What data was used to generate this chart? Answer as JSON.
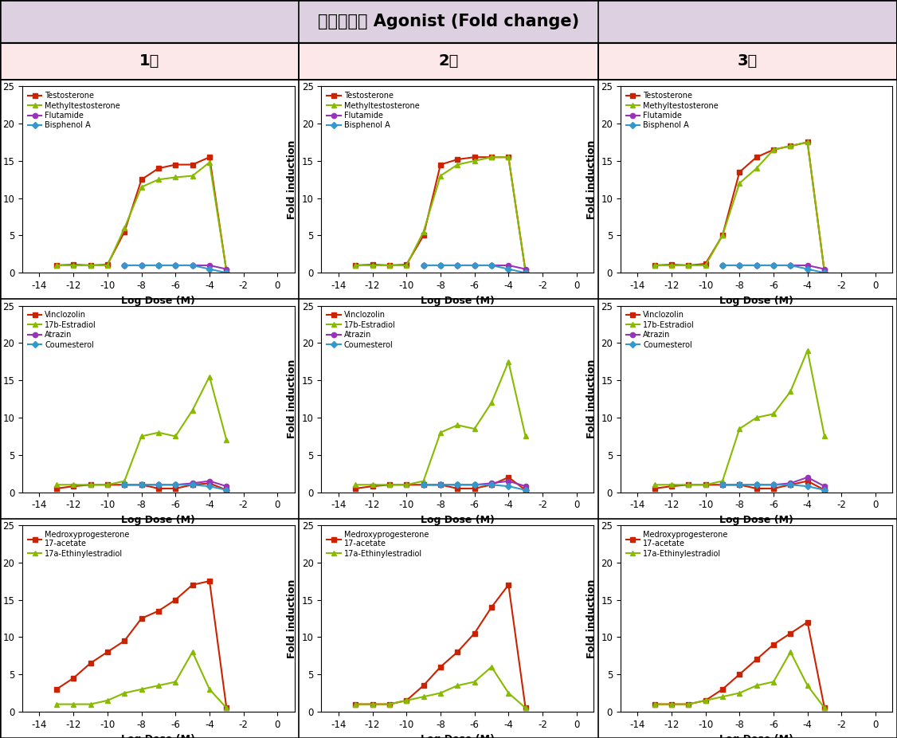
{
  "title": "고려대학교 Agonist (Fold change)",
  "col_headers": [
    "1차",
    "2차",
    "3차"
  ],
  "title_bg": "#ddd0e0",
  "col_header_bg": "#fce8e8",
  "x_ticks": [
    -14,
    -12,
    -10,
    -8,
    -6,
    -4,
    -2,
    0
  ],
  "xlim": [
    -15,
    1
  ],
  "ylim": [
    0,
    25
  ],
  "y_ticks": [
    0,
    5,
    10,
    15,
    20,
    25
  ],
  "xlabel": "Log Dose (M)",
  "ylabel": "Fold induction",
  "rows": [
    {
      "series": [
        {
          "label": "Testosterone",
          "color": "#cc2200",
          "marker": "s",
          "x": [
            -13,
            -12,
            -11,
            -10,
            -9,
            -8,
            -7,
            -6,
            -5,
            -4,
            -3
          ],
          "y1": [
            1.0,
            1.1,
            1.0,
            1.1,
            5.5,
            12.5,
            14.0,
            14.5,
            14.5,
            15.5,
            0.2
          ],
          "y2": [
            1.0,
            1.1,
            1.0,
            1.1,
            5.0,
            14.5,
            15.2,
            15.5,
            15.5,
            15.5,
            0.2
          ],
          "y3": [
            1.0,
            1.1,
            1.0,
            1.2,
            5.0,
            13.5,
            15.5,
            16.5,
            17.0,
            17.5,
            0.1
          ]
        },
        {
          "label": "Methyltestosterone",
          "color": "#88bb00",
          "marker": "^",
          "x": [
            -13,
            -12,
            -11,
            -10,
            -9,
            -8,
            -7,
            -6,
            -5,
            -4,
            -3
          ],
          "y1": [
            1.0,
            1.0,
            1.0,
            1.0,
            6.0,
            11.5,
            12.5,
            12.8,
            13.0,
            14.8,
            0.2
          ],
          "y2": [
            1.0,
            1.0,
            1.0,
            1.0,
            5.5,
            13.0,
            14.5,
            15.0,
            15.5,
            15.5,
            0.2
          ],
          "y3": [
            1.0,
            1.0,
            1.0,
            1.0,
            5.0,
            12.0,
            14.0,
            16.5,
            17.0,
            17.5,
            0.1
          ]
        },
        {
          "label": "Flutamide",
          "color": "#9933bb",
          "marker": "o",
          "x": [
            -9,
            -8,
            -7,
            -6,
            -5,
            -4,
            -3
          ],
          "y1": [
            1.0,
            1.0,
            1.0,
            1.0,
            1.0,
            1.0,
            0.5
          ],
          "y2": [
            1.0,
            1.0,
            1.0,
            1.0,
            1.0,
            1.0,
            0.5
          ],
          "y3": [
            1.0,
            1.0,
            1.0,
            1.0,
            1.0,
            1.0,
            0.5
          ]
        },
        {
          "label": "Bisphenol A",
          "color": "#3399cc",
          "marker": "D",
          "x": [
            -9,
            -8,
            -7,
            -6,
            -5,
            -4,
            -3
          ],
          "y1": [
            1.0,
            1.0,
            1.0,
            1.0,
            1.0,
            0.5,
            0.0
          ],
          "y2": [
            1.0,
            1.0,
            1.0,
            1.0,
            1.0,
            0.5,
            0.0
          ],
          "y3": [
            1.0,
            1.0,
            1.0,
            1.0,
            1.0,
            0.5,
            0.0
          ]
        }
      ]
    },
    {
      "series": [
        {
          "label": "Vinclozolin",
          "color": "#cc2200",
          "marker": "s",
          "x": [
            -13,
            -12,
            -11,
            -10,
            -9,
            -8,
            -7,
            -6,
            -5,
            -4,
            -3
          ],
          "y1": [
            0.5,
            0.8,
            1.0,
            1.0,
            1.0,
            1.0,
            0.5,
            0.5,
            1.0,
            1.2,
            0.3
          ],
          "y2": [
            0.5,
            0.8,
            1.0,
            1.0,
            1.0,
            1.0,
            0.5,
            0.5,
            1.0,
            2.0,
            0.3
          ],
          "y3": [
            0.5,
            0.8,
            1.0,
            1.0,
            1.0,
            1.0,
            0.5,
            0.5,
            1.0,
            1.5,
            0.3
          ]
        },
        {
          "label": "17b-Estradiol",
          "color": "#88bb00",
          "marker": "^",
          "x": [
            -13,
            -12,
            -11,
            -10,
            -9,
            -8,
            -7,
            -6,
            -5,
            -4,
            -3
          ],
          "y1": [
            1.0,
            1.0,
            1.0,
            1.0,
            1.5,
            7.5,
            8.0,
            7.5,
            11.0,
            15.5,
            7.0
          ],
          "y2": [
            1.0,
            1.0,
            1.0,
            1.0,
            1.5,
            8.0,
            9.0,
            8.5,
            12.0,
            17.5,
            7.5
          ],
          "y3": [
            1.0,
            1.0,
            1.0,
            1.0,
            1.5,
            8.5,
            10.0,
            10.5,
            13.5,
            19.0,
            7.5
          ]
        },
        {
          "label": "Atrazin",
          "color": "#9933bb",
          "marker": "o",
          "x": [
            -9,
            -8,
            -7,
            -6,
            -5,
            -4,
            -3
          ],
          "y1": [
            1.0,
            1.0,
            1.0,
            1.0,
            1.2,
            1.5,
            0.8
          ],
          "y2": [
            1.0,
            1.0,
            1.0,
            1.0,
            1.2,
            1.5,
            0.8
          ],
          "y3": [
            1.0,
            1.0,
            1.0,
            1.0,
            1.2,
            2.0,
            0.8
          ]
        },
        {
          "label": "Coumesterol",
          "color": "#3399cc",
          "marker": "D",
          "x": [
            -9,
            -8,
            -7,
            -6,
            -5,
            -4,
            -3
          ],
          "y1": [
            1.0,
            1.0,
            1.0,
            1.0,
            1.0,
            0.8,
            0.3
          ],
          "y2": [
            1.0,
            1.0,
            1.0,
            1.0,
            1.0,
            0.8,
            0.3
          ],
          "y3": [
            1.0,
            1.0,
            1.0,
            1.0,
            1.0,
            0.8,
            0.3
          ]
        }
      ]
    },
    {
      "series": [
        {
          "label": "Medroxyprogesterone\n17-acetate",
          "color": "#cc2200",
          "marker": "s",
          "x": [
            -13,
            -12,
            -11,
            -10,
            -9,
            -8,
            -7,
            -6,
            -5,
            -4,
            -3
          ],
          "y1": [
            3.0,
            4.5,
            6.5,
            8.0,
            9.5,
            12.5,
            13.5,
            15.0,
            17.0,
            17.5,
            0.5
          ],
          "y2": [
            1.0,
            1.0,
            1.0,
            1.5,
            3.5,
            6.0,
            8.0,
            10.5,
            14.0,
            17.0,
            0.5
          ],
          "y3": [
            1.0,
            1.0,
            1.0,
            1.5,
            3.0,
            5.0,
            7.0,
            9.0,
            10.5,
            12.0,
            0.5
          ]
        },
        {
          "label": "17a-Ethinylestradiol",
          "color": "#88bb00",
          "marker": "^",
          "x": [
            -13,
            -12,
            -11,
            -10,
            -9,
            -8,
            -7,
            -6,
            -5,
            -4,
            -3
          ],
          "y1": [
            1.0,
            1.0,
            1.0,
            1.5,
            2.5,
            3.0,
            3.5,
            4.0,
            8.0,
            3.0,
            0.5
          ],
          "y2": [
            1.0,
            1.0,
            1.0,
            1.5,
            2.0,
            2.5,
            3.5,
            4.0,
            6.0,
            2.5,
            0.5
          ],
          "y3": [
            1.0,
            1.0,
            1.0,
            1.5,
            2.0,
            2.5,
            3.5,
            4.0,
            8.0,
            3.5,
            0.5
          ]
        }
      ]
    }
  ]
}
